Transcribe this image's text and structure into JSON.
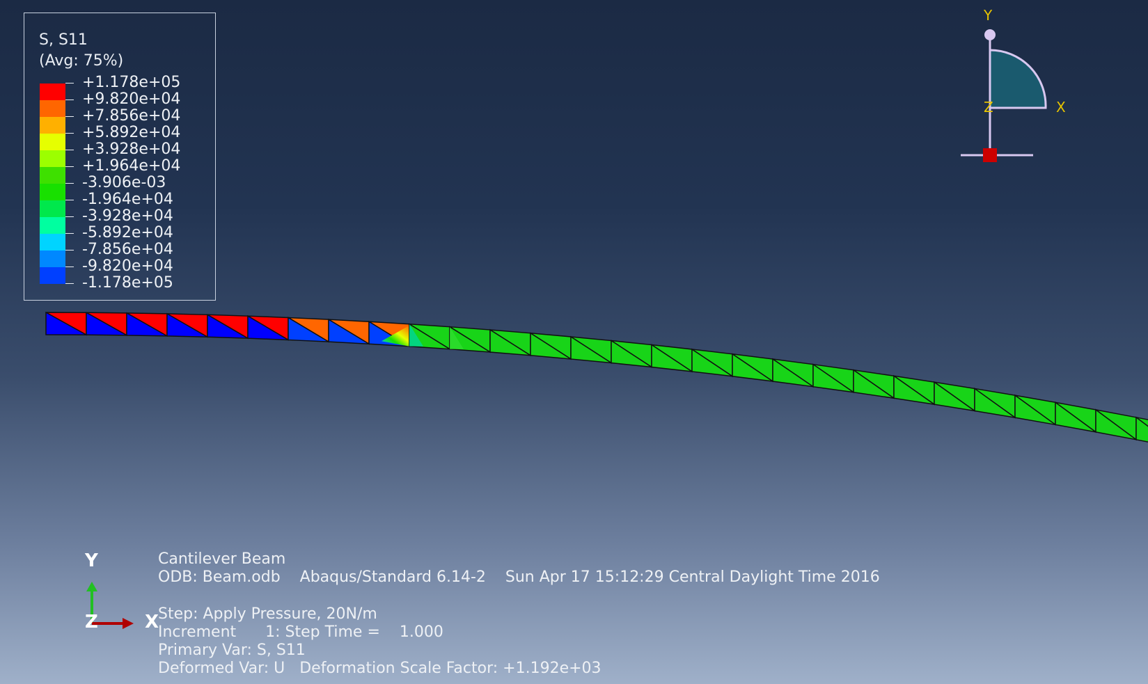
{
  "legend": {
    "variable": "S, S11",
    "averaging": "(Avg: 75%)",
    "labels": [
      "+1.178e+05",
      "+9.820e+04",
      "+7.856e+04",
      "+5.892e+04",
      "+3.928e+04",
      "+1.964e+04",
      "-3.906e-03",
      "-1.964e+04",
      "-3.928e+04",
      "-5.892e+04",
      "-7.856e+04",
      "-9.820e+04",
      "-1.178e+05"
    ],
    "colors": [
      "#ff0000",
      "#ff6600",
      "#ffb000",
      "#e6ff00",
      "#9cff00",
      "#3ee000",
      "#18e000",
      "#00e84c",
      "#00ffa0",
      "#00d4ff",
      "#0088ff",
      "#0040ff",
      "#0000ff"
    ]
  },
  "view_triad": {
    "y_label": "Y",
    "z_label": "Z",
    "x_label": "X"
  },
  "global_triad": {
    "y_label": "Y",
    "z_label": "Z",
    "x_label": "X"
  },
  "info": {
    "model_title": "Cantilever Beam",
    "odb_line": "ODB: Beam.odb    Abaqus/Standard 6.14-2    Sun Apr 17 15:12:29 Central Daylight Time 2016",
    "step_line": "Step: Apply Pressure, 20N/m",
    "increment_line": "Increment      1: Step Time =    1.000",
    "primary_var_line": "Primary Var: S, S11",
    "deformed_var_line": "Deformed Var: U   Deformation Scale Factor: +1.192e+03"
  },
  "colors": {
    "background_top": "#1b2a44",
    "background_bottom": "#9fb0c9",
    "mesh_green": "#18d418",
    "triad_fill": "#1a5a6e",
    "triad_stroke": "#d8c8f0",
    "text": "#eef1f5"
  }
}
